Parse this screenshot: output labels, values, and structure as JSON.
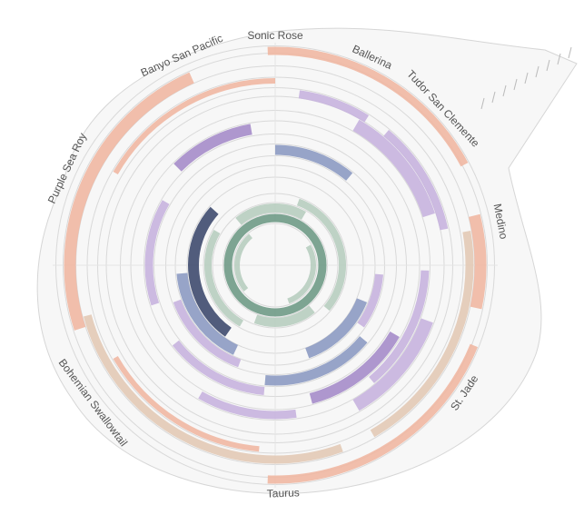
{
  "diagram": {
    "outer_labels": [
      {
        "text": "Sonic Rose",
        "angle": 0
      },
      {
        "text": "Ballerina",
        "angle": 25
      },
      {
        "text": "Tudor San Clemente",
        "angle": 47
      },
      {
        "text": "Medino",
        "angle": 79
      },
      {
        "text": "St. Jade",
        "angle": 124
      },
      {
        "text": "Taurus",
        "angle": 178
      },
      {
        "text": "Bohemian Swallowtail",
        "angle": 233
      },
      {
        "text": "Purple Sea Roy",
        "angle": 295
      },
      {
        "text": "Banyo San Pacific",
        "angle": 336
      }
    ],
    "inner_labels": [
      {
        "text": "",
        "angle": 340,
        "radius": 155
      },
      {
        "text": "",
        "angle": 338,
        "radius": 140
      },
      {
        "text": "",
        "angle": 336,
        "radius": 125
      }
    ],
    "colors": {
      "salmon": "#f0b7a2",
      "salmon_dark": "#e8a890",
      "tan": "#e2c9b5",
      "lavender": "#c6b2de",
      "lavender_dark": "#a58cc9",
      "slate": "#8c9ac2",
      "navy": "#3e4a6e",
      "sage": "#b7cdbf",
      "teal": "#6f9a86",
      "guide": "#d9d9d9"
    },
    "rings": [
      {
        "radius": 236,
        "width": 9,
        "color": "salmon",
        "arcs": [
          [
            358,
            62
          ],
          [
            112,
            182
          ]
        ]
      },
      {
        "radius": 226,
        "width": 13,
        "color": "salmon",
        "arcs": [
          [
            76,
            102
          ],
          [
            252,
            336
          ]
        ]
      },
      {
        "radius": 214,
        "width": 9,
        "color": "tan",
        "arcs": [
          [
            80,
            150
          ],
          [
            160,
            255
          ]
        ]
      },
      {
        "radius": 203,
        "width": 6,
        "color": "salmon",
        "arcs": [
          [
            300,
            360
          ],
          [
            185,
            240
          ]
        ]
      },
      {
        "radius": 190,
        "width": 9,
        "color": "lavender",
        "arcs": [
          [
            8,
            32
          ],
          [
            40,
            78
          ]
        ]
      },
      {
        "radius": 178,
        "width": 14,
        "color": "lavender",
        "arcs": [
          [
            30,
            72
          ],
          [
            110,
            150
          ]
        ]
      },
      {
        "radius": 165,
        "width": 9,
        "color": "lavender",
        "arcs": [
          [
            92,
            140
          ],
          [
            172,
            210
          ]
        ]
      },
      {
        "radius": 152,
        "width": 12,
        "color": "lavender_dark",
        "arcs": [
          [
            315,
            350
          ],
          [
            120,
            165
          ]
        ]
      },
      {
        "radius": 139,
        "width": 9,
        "color": "lavender",
        "arcs": [
          [
            185,
            232
          ],
          [
            252,
            300
          ]
        ]
      },
      {
        "radius": 127,
        "width": 11,
        "color": "slate",
        "arcs": [
          [
            0,
            40
          ],
          [
            130,
            185
          ]
        ]
      },
      {
        "radius": 115,
        "width": 9,
        "color": "lavender",
        "arcs": [
          [
            200,
            250
          ],
          [
            95,
            125
          ]
        ]
      },
      {
        "radius": 103,
        "width": 12,
        "color": "slate",
        "arcs": [
          [
            205,
            265
          ],
          [
            112,
            160
          ]
        ]
      },
      {
        "radius": 90,
        "width": 12,
        "color": "navy",
        "arcs": [
          [
            215,
            312
          ]
        ]
      },
      {
        "radius": 74,
        "width": 8,
        "color": "sage",
        "arcs": [
          [
            20,
            130
          ],
          [
            210,
            300
          ]
        ]
      },
      {
        "radius": 63,
        "width": 10,
        "color": "sage",
        "arcs": [
          [
            140,
            200
          ],
          [
            320,
            30
          ]
        ]
      },
      {
        "radius": 52,
        "width": 9,
        "color": "teal",
        "arcs": [
          [
            0,
            360
          ]
        ]
      },
      {
        "radius": 42,
        "width": 6,
        "color": "sage",
        "arcs": [
          [
            60,
            160
          ],
          [
            230,
            320
          ]
        ]
      }
    ]
  }
}
